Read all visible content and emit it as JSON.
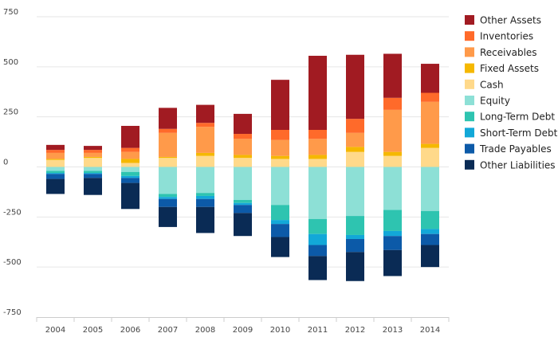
{
  "chart_data": {
    "type": "bar",
    "stacked": true,
    "categories": [
      "2004",
      "2005",
      "2006",
      "2007",
      "2008",
      "2009",
      "2010",
      "2011",
      "2012",
      "2013",
      "2014"
    ],
    "ylim": [
      -750,
      750
    ],
    "yticks": [
      750,
      500,
      250,
      0,
      -250,
      -500,
      -750
    ],
    "grid": true,
    "legend_position": "right",
    "positive_series": [
      {
        "name": "Fixed Assets",
        "color": "#f5b800",
        "values": [
          5,
          5,
          20,
          5,
          15,
          15,
          15,
          20,
          25,
          20,
          20
        ]
      },
      {
        "name": "Receivables",
        "color": "#ff9a4a",
        "values": [
          30,
          20,
          35,
          120,
          130,
          80,
          80,
          80,
          70,
          210,
          210
        ]
      },
      {
        "name": "Inventories",
        "color": "#ff6a2a",
        "values": [
          15,
          15,
          20,
          20,
          20,
          25,
          50,
          45,
          70,
          60,
          45
        ]
      },
      {
        "name": "Other Assets",
        "color": "#a11b22",
        "values": [
          25,
          20,
          110,
          105,
          90,
          100,
          250,
          370,
          320,
          220,
          145
        ]
      }
    ],
    "positive_base": [
      {
        "name": "Cash",
        "color": "#ffd98a",
        "values": [
          35,
          45,
          20,
          45,
          55,
          45,
          40,
          40,
          75,
          55,
          95
        ]
      }
    ],
    "negative_series": [
      {
        "name": "Equity",
        "color": "#8de0d6",
        "values": [
          -20,
          -20,
          -25,
          -135,
          -130,
          -165,
          -190,
          -260,
          -245,
          -215,
          -220
        ]
      },
      {
        "name": "Long-Term Debt",
        "color": "#2ec4b0",
        "values": [
          -10,
          -10,
          -20,
          -15,
          -15,
          -15,
          -75,
          -75,
          -95,
          -105,
          -90
        ]
      },
      {
        "name": "Short-Term Debt",
        "color": "#12a8d8",
        "values": [
          -5,
          -5,
          -10,
          -10,
          -15,
          -10,
          -20,
          -55,
          -20,
          -25,
          -25
        ]
      },
      {
        "name": "Trade Payables",
        "color": "#0c5aa8",
        "values": [
          -25,
          -20,
          -25,
          -40,
          -40,
          -40,
          -65,
          -55,
          -65,
          -70,
          -55
        ]
      },
      {
        "name": "Other Liabilities",
        "color": "#0a2b55",
        "values": [
          -75,
          -85,
          -130,
          -100,
          -130,
          -115,
          -100,
          -120,
          -145,
          -130,
          -110
        ]
      }
    ],
    "legend": [
      {
        "name": "Other Assets",
        "color": "#a11b22"
      },
      {
        "name": "Inventories",
        "color": "#ff6a2a"
      },
      {
        "name": "Receivables",
        "color": "#ff9a4a"
      },
      {
        "name": "Fixed Assets",
        "color": "#f5b800"
      },
      {
        "name": "Cash",
        "color": "#ffd98a"
      },
      {
        "name": "Equity",
        "color": "#8de0d6"
      },
      {
        "name": "Long-Term Debt",
        "color": "#2ec4b0"
      },
      {
        "name": "Short-Term Debt",
        "color": "#12a8d8"
      },
      {
        "name": "Trade Payables",
        "color": "#0c5aa8"
      },
      {
        "name": "Other Liabilities",
        "color": "#0a2b55"
      }
    ]
  }
}
